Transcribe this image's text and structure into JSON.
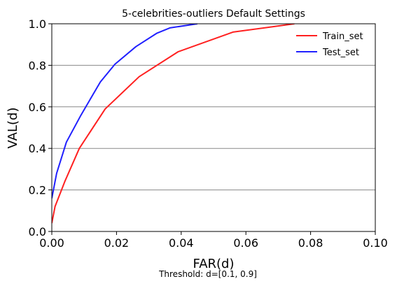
{
  "chart_data": {
    "type": "line",
    "title": "5-celebrities-outliers Default Settings",
    "xlabel": "FAR(d)",
    "ylabel": "VAL(d)",
    "xlim": [
      0.0,
      0.1
    ],
    "ylim": [
      0.0,
      1.0
    ],
    "x_ticks": [
      "0.00",
      "0.02",
      "0.04",
      "0.06",
      "0.08",
      "0.10"
    ],
    "y_ticks": [
      "0.0",
      "0.2",
      "0.4",
      "0.6",
      "0.8",
      "1.0"
    ],
    "grid": "horizontal",
    "legend_position": "top-right",
    "note": "Threshold: d=[0.1, 0.9]",
    "series": [
      {
        "name": "Train_set",
        "color": "#ff2020",
        "x": [
          0.0,
          0.001,
          0.004,
          0.0085,
          0.0165,
          0.027,
          0.039,
          0.056,
          0.075
        ],
        "y": [
          0.04,
          0.12,
          0.24,
          0.4,
          0.59,
          0.745,
          0.865,
          0.96,
          1.0
        ]
      },
      {
        "name": "Test_set",
        "color": "#2020ff",
        "x": [
          0.0,
          0.0015,
          0.0045,
          0.009,
          0.015,
          0.0195,
          0.026,
          0.0325,
          0.0365,
          0.045
        ],
        "y": [
          0.16,
          0.28,
          0.43,
          0.56,
          0.72,
          0.805,
          0.89,
          0.955,
          0.98,
          1.0
        ]
      }
    ]
  }
}
